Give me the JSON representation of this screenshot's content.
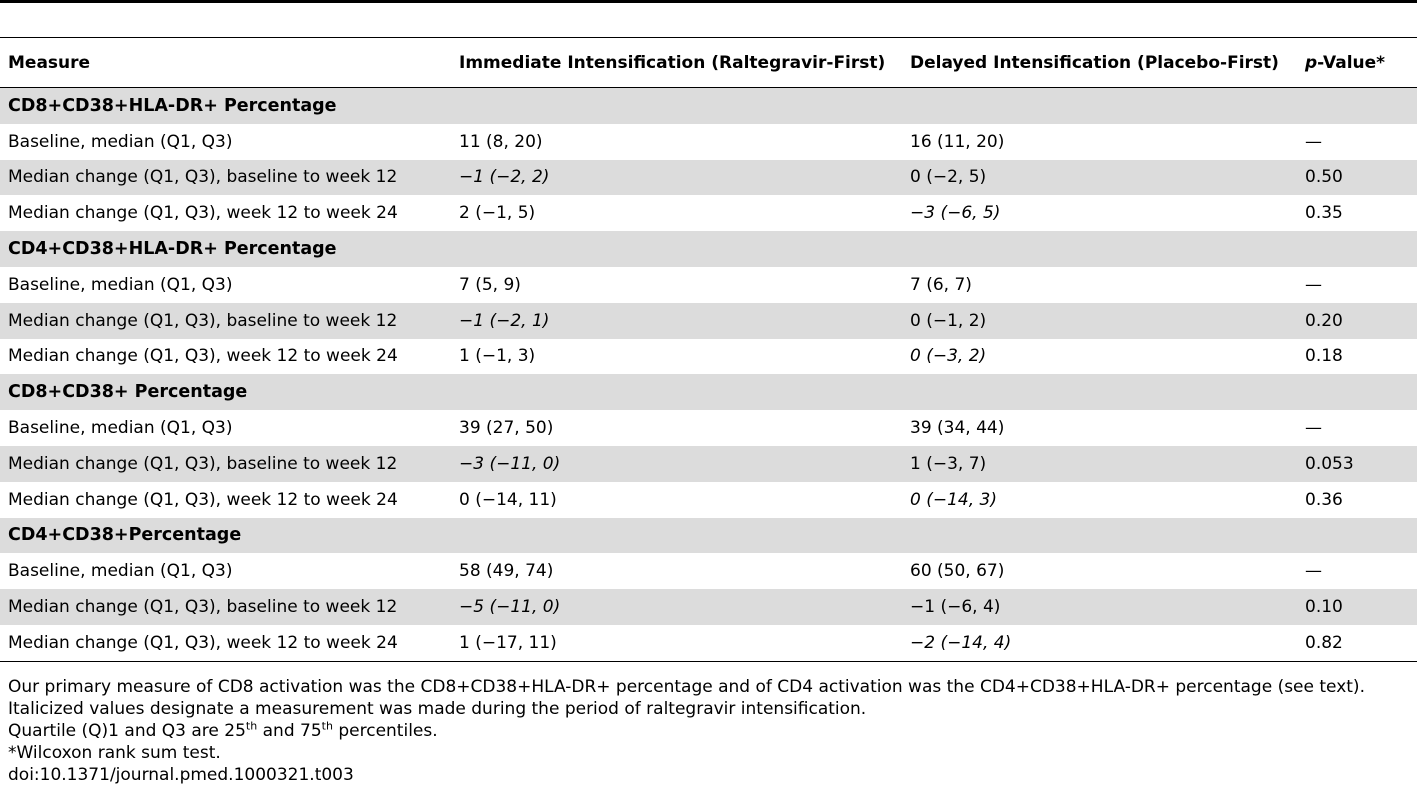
{
  "table": {
    "headers": {
      "measure": "Measure",
      "immediate": "Immediate Intensification (Raltegravir-First)",
      "delayed": "Delayed Intensification (Placebo-First)",
      "pvalue_prefix": "p",
      "pvalue_suffix": "-Value*"
    },
    "sections": [
      {
        "title": "CD8+CD38+HLA-DR+ Percentage",
        "rows": [
          {
            "measure": "Baseline, median (Q1, Q3)",
            "immediate": "11 (8, 20)",
            "delayed": "16 (11, 20)",
            "p": "—"
          },
          {
            "measure": "Median change (Q1, Q3), baseline to week 12",
            "immediate": "−1 (−2, 2)",
            "delayed": "0 (−2, 5)",
            "p": "0.50"
          },
          {
            "measure": "Median change (Q1, Q3), week 12 to week 24",
            "immediate": "2 (−1, 5)",
            "delayed": "−3 (−6, 5)",
            "p": "0.35"
          }
        ]
      },
      {
        "title": "CD4+CD38+HLA-DR+ Percentage",
        "rows": [
          {
            "measure": "Baseline, median (Q1, Q3)",
            "immediate": "7 (5, 9)",
            "delayed": "7 (6, 7)",
            "p": "—"
          },
          {
            "measure": "Median change (Q1, Q3), baseline to week 12",
            "immediate": "−1 (−2, 1)",
            "delayed": "0 (−1, 2)",
            "p": "0.20"
          },
          {
            "measure": "Median change (Q1, Q3), week 12 to week 24",
            "immediate": "1 (−1, 3)",
            "delayed": "0 (−3, 2)",
            "p": "0.18"
          }
        ]
      },
      {
        "title": "CD8+CD38+ Percentage",
        "rows": [
          {
            "measure": "Baseline, median (Q1, Q3)",
            "immediate": "39 (27, 50)",
            "delayed": "39 (34, 44)",
            "p": "—"
          },
          {
            "measure": "Median change (Q1, Q3), baseline to week 12",
            "immediate": "−3 (−11, 0)",
            "delayed": "1 (−3, 7)",
            "p": "0.053"
          },
          {
            "measure": "Median change (Q1, Q3), week 12 to week 24",
            "immediate": "0 (−14, 11)",
            "delayed": "0 (−14, 3)",
            "p": "0.36"
          }
        ]
      },
      {
        "title": "CD4+CD38+Percentage",
        "rows": [
          {
            "measure": "Baseline, median (Q1, Q3)",
            "immediate": "58 (49, 74)",
            "delayed": "60 (50, 67)",
            "p": "—"
          },
          {
            "measure": "Median change (Q1, Q3), baseline to week 12",
            "immediate": "−5 (−11, 0)",
            "delayed": "−1 (−6, 4)",
            "p": "0.10"
          },
          {
            "measure": "Median change (Q1, Q3), week 12 to week 24",
            "immediate": "1 (−17, 11)",
            "delayed": "−2 (−14, 4)",
            "p": "0.82"
          }
        ]
      }
    ]
  },
  "notes": {
    "line1": "Our primary measure of CD8 activation was the CD8+CD38+HLA-DR+ percentage and of CD4 activation was the CD4+CD38+HLA-DR+ percentage (see text). Italicized values designate a measurement was made during the period of raltegravir intensification.",
    "line2_a": "Quartile (Q)1 and Q3 are 25",
    "line2_sup1": "th",
    "line2_b": " and 75",
    "line2_sup2": "th",
    "line2_c": " percentiles.",
    "line3": "*Wilcoxon rank sum test.",
    "doi": "doi:10.1371/journal.pmed.1000321.t003"
  },
  "colors": {
    "shade": "#dcdcdc",
    "rule": "#000000"
  }
}
